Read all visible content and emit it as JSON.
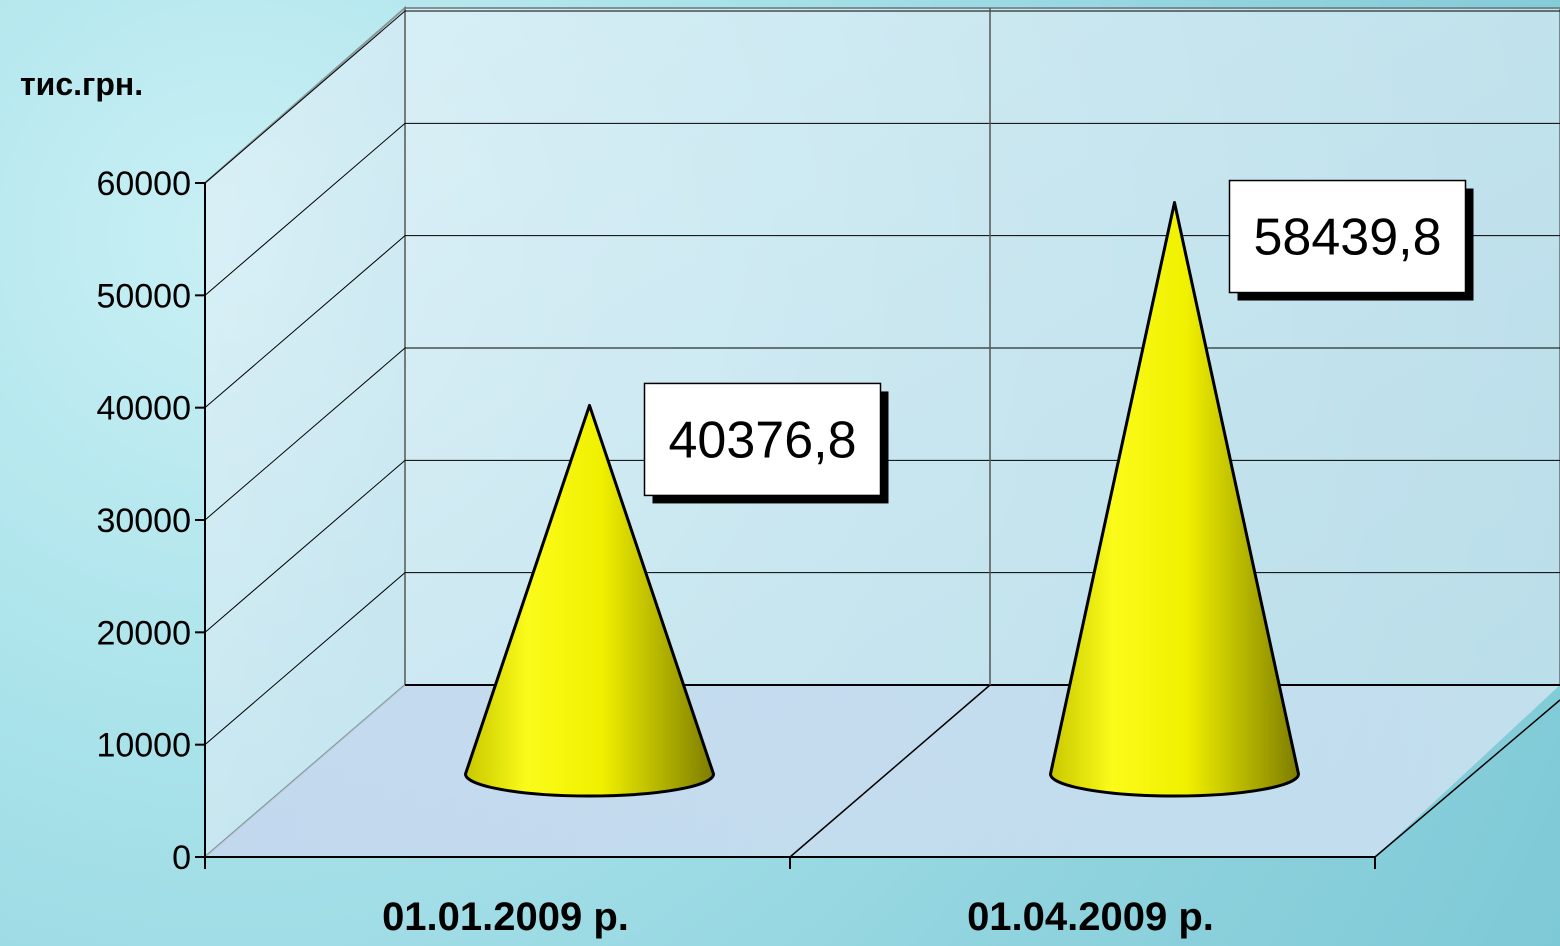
{
  "chart_data": {
    "type": "bar",
    "shape": "cone",
    "categories": [
      "01.01.2009 р.",
      "01.04.2009 р."
    ],
    "values": [
      40376.8,
      58439.8
    ],
    "data_labels": [
      "40376,8",
      "58439,8"
    ],
    "ylabel": "тис.грн.",
    "ylim": [
      0,
      60000
    ],
    "yticks": [
      "0",
      "10000",
      "20000",
      "30000",
      "40000",
      "50000",
      "60000"
    ],
    "grid": true,
    "legend": "none",
    "colors": {
      "cone": "#f5f500",
      "cone_shadow": "#8a8a00",
      "outline": "#000000"
    }
  }
}
